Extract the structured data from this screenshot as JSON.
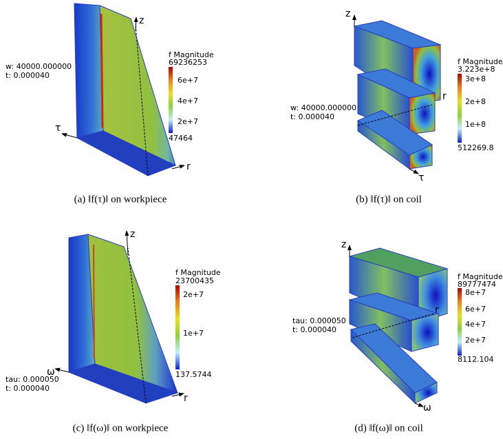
{
  "panels": [
    {
      "caption": "(a) ‖f(τ)‖ on workpiece",
      "info": [
        "w: 40000.000000",
        "t: 0.000040"
      ],
      "colorbar": {
        "title": "f Magnitude",
        "labels": [
          "69236253",
          "6e+7",
          "4e+7",
          "2e+7",
          "47464"
        ]
      },
      "axes": [
        "z",
        "τ",
        "r"
      ]
    },
    {
      "caption": "(b) ‖f(τ)‖ on coil",
      "info": [
        "w: 40000.000000",
        "t: 0.000040"
      ],
      "colorbar": {
        "title": "f Magnitude",
        "labels": [
          "3.223e+8",
          "3e+8",
          "2e+8",
          "1e+8",
          "512269.8"
        ]
      },
      "axes": [
        "z",
        "r",
        "τ"
      ]
    },
    {
      "caption": "(c) ‖f(ω)‖ on workpiece",
      "info": [
        "tau: 0.000050",
        "t: 0.000040"
      ],
      "colorbar": {
        "title": "f Magnitude",
        "labels": [
          "23700435",
          "2e+7",
          "1e+7",
          "137.5744"
        ]
      },
      "axes": [
        "z",
        "ω",
        "r"
      ]
    },
    {
      "caption": "(d) ‖f(ω)‖ on coil",
      "info": [
        "tau: 0.000050",
        "t: 0.000040"
      ],
      "colorbar": {
        "title": "f Magnitude",
        "labels": [
          "89777474",
          "8e+7",
          "6e+7",
          "4e+7",
          "2e+7",
          "8112.104"
        ]
      },
      "axes": [
        "z",
        "r",
        "ω"
      ]
    }
  ]
}
